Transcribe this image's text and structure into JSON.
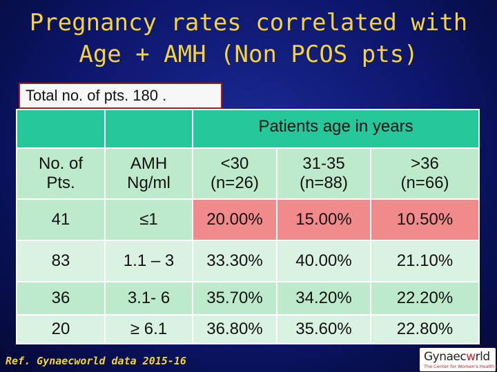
{
  "title": {
    "line1": "Pregnancy rates correlated with",
    "line2": "Age + AMH (Non PCOS pts)"
  },
  "total_label": "Total no. of pts. 180 .",
  "table": {
    "group_header": "Patients age in years",
    "col_headers": [
      [
        "No. of",
        "Pts."
      ],
      [
        "AMH",
        "Ng/ml"
      ],
      [
        "<30",
        "(n=26)"
      ],
      [
        "31-35",
        "(n=88)"
      ],
      [
        ">36",
        "(n=66)"
      ]
    ],
    "rows": [
      [
        "41",
        "≤1",
        "20.00%",
        "15.00%",
        "10.50%"
      ],
      [
        "83",
        "1.1 – 3",
        "33.30%",
        "40.00%",
        "21.10%"
      ],
      [
        "36",
        "3.1- 6",
        "35.70%",
        "34.20%",
        "22.20%"
      ],
      [
        "20",
        "≥ 6.1",
        "36.80%",
        "35.60%",
        "22.80%"
      ]
    ]
  },
  "reference": "Ref. Gynaecworld data 2015-16",
  "logo": {
    "text_start": "Gynaec",
    "text_w": "w",
    "text_end": "rld",
    "tagline": "The Center for Women's Health & Fertility"
  },
  "colors": {
    "teal": "#26c79a",
    "light_green": "#bdeacb",
    "pink": "#f18a8a",
    "title_yellow": "#f4d43a"
  }
}
